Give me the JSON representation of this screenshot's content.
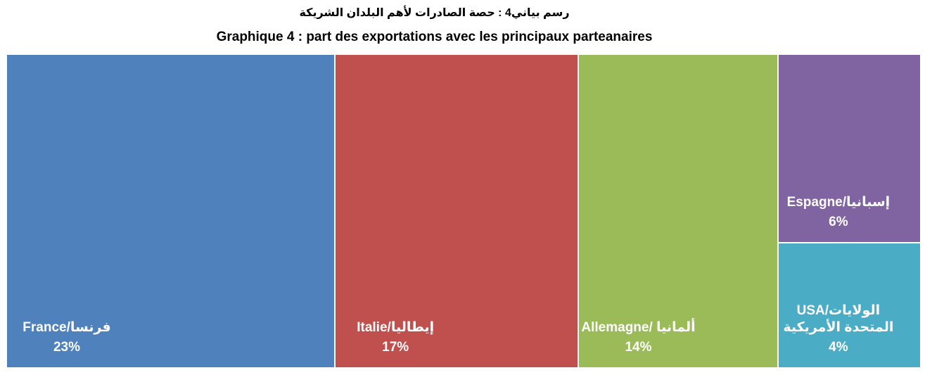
{
  "chart_data": {
    "type": "treemap",
    "title": "رسم بياني4 :  حصة الصادرات لأهم البلدان الشريكة",
    "subtitle": "Graphique 4 : part des exportations avec les principaux parteanaires",
    "categories": [
      "France/فرنسا",
      "Italie/إيطاليا",
      "Allemagne/ ألمانيا",
      "Espagne/إسبانيا",
      "USA/الولايات المتحدة الأمريكية"
    ],
    "values": [
      23,
      17,
      14,
      6,
      4
    ],
    "value_labels": [
      "23%",
      "17%",
      "14%",
      "6%",
      "4%"
    ],
    "colors": [
      "#4f81bd",
      "#c0504d",
      "#9bbb59",
      "#8064a2",
      "#4bacc6"
    ]
  }
}
